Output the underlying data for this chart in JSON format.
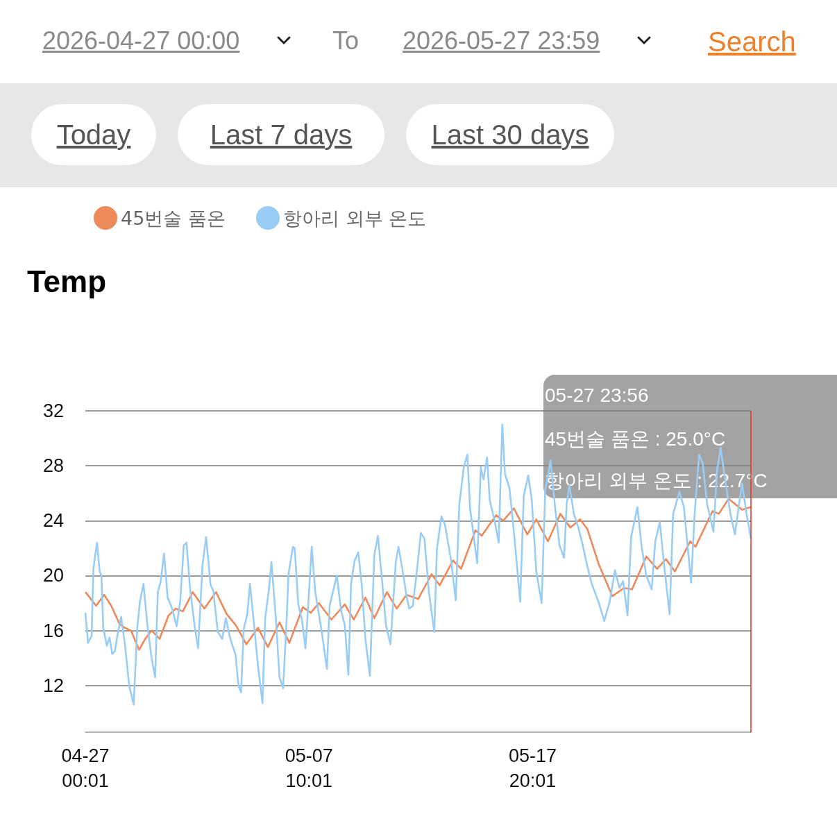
{
  "chart_data": {
    "type": "line",
    "title": "Temp",
    "legend": "top",
    "grid": "y",
    "marker": "none",
    "annotations": [
      "2026-04-27 00:00",
      "To",
      "2026-05-27 23:59",
      "Search",
      "Today",
      "Last 7 days",
      "Last 30 days",
      "05-27 23:56",
      "45번술 품온 : 25.0°C",
      "항아리 외부 온도 : 22.7°C"
    ],
    "xlim": [
      "2026-04-27T00:01",
      "2026-05-27T23:56"
    ],
    "xticks": [
      {
        "value": "2026-04-27T00:01",
        "label": "04-27\n00:01"
      },
      {
        "value": "2026-05-07T10:01",
        "label": "05-07\n10:01"
      },
      {
        "value": "2026-05-17T20:01",
        "label": "05-17\n20:01"
      }
    ],
    "ylim": [
      8.6,
      32
    ],
    "yticks": [
      12,
      16,
      20,
      24,
      28,
      32
    ],
    "ref_lines": [
      {
        "axis": "x",
        "value": "2026-05-27T23:56",
        "color": "#e8312a"
      }
    ],
    "series": [
      {
        "name": "45번술 품온",
        "color": "#ee8a5a",
        "x": [
          "2026-04-27T00:01",
          "2026-04-27T05:00",
          "2026-04-27T12:00",
          "2026-04-27T21:00",
          "2026-04-28T05:00",
          "2026-04-28T14:00",
          "2026-04-28T20:00",
          "2026-04-29T03:00",
          "2026-04-29T12:00",
          "2026-04-29T19:00",
          "2026-04-30T02:00",
          "2026-04-30T11:00",
          "2026-04-30T21:00",
          "2026-05-01T05:00",
          "2026-05-01T13:00",
          "2026-05-02T00:00",
          "2026-05-02T13:00",
          "2026-05-03T02:00",
          "2026-05-03T14:00",
          "2026-05-04T00:00",
          "2026-05-04T12:00",
          "2026-05-05T01:00",
          "2026-05-05T12:00",
          "2026-05-06T01:00",
          "2026-05-06T12:00",
          "2026-05-07T03:00",
          "2026-05-07T12:00",
          "2026-05-07T21:00",
          "2026-05-08T11:00",
          "2026-05-09T02:00",
          "2026-05-09T12:00",
          "2026-05-10T01:00",
          "2026-05-10T11:00",
          "2026-05-11T01:00",
          "2026-05-11T12:00",
          "2026-05-11T23:00",
          "2026-05-12T12:00",
          "2026-05-13T03:00",
          "2026-05-13T12:00",
          "2026-05-14T03:00",
          "2026-05-14T12:00",
          "2026-05-15T04:00",
          "2026-05-15T11:00",
          "2026-05-16T03:00",
          "2026-05-16T11:00",
          "2026-05-16T23:00",
          "2026-05-17T14:00",
          "2026-05-18T00:00",
          "2026-05-18T13:00",
          "2026-05-19T03:00",
          "2026-05-19T14:00",
          "2026-05-20T01:00",
          "2026-05-20T09:00",
          "2026-05-20T22:00",
          "2026-05-21T13:00",
          "2026-05-22T02:00",
          "2026-05-22T11:00",
          "2026-05-23T03:00",
          "2026-05-23T15:00",
          "2026-05-24T01:00",
          "2026-05-24T11:00",
          "2026-05-25T04:00",
          "2026-05-25T10:00",
          "2026-05-26T05:00",
          "2026-05-26T12:00",
          "2026-05-26T23:00",
          "2026-05-27T14:00",
          "2026-05-27T23:56"
        ],
        "values": [
          18.8,
          18.4,
          17.8,
          18.6,
          17.8,
          16.5,
          16.2,
          16.0,
          14.6,
          15.4,
          16.0,
          15.4,
          17.1,
          17.6,
          17.4,
          18.8,
          17.6,
          18.8,
          17.2,
          16.4,
          15.0,
          16.2,
          14.8,
          16.6,
          15.1,
          17.7,
          17.3,
          18.0,
          16.8,
          17.9,
          16.8,
          18.4,
          16.9,
          18.8,
          17.6,
          18.6,
          18.3,
          20.1,
          19.3,
          21.1,
          20.5,
          23.3,
          22.9,
          24.4,
          24.0,
          24.9,
          23.0,
          24.1,
          22.5,
          24.5,
          23.5,
          24.1,
          23.4,
          20.8,
          18.5,
          19.1,
          19.0,
          21.4,
          20.5,
          21.2,
          20.3,
          22.5,
          22.1,
          24.7,
          24.5,
          25.6,
          24.8,
          25.0
        ]
      },
      {
        "name": "항아리 외부 온도",
        "color": "#9acdf5",
        "x": [
          "2026-04-27T00:01",
          "2026-04-27T03:00",
          "2026-04-27T07:00",
          "2026-04-27T09:00",
          "2026-04-27T13:00",
          "2026-04-27T16:00",
          "2026-04-27T18:00",
          "2026-04-27T20:00",
          "2026-04-28T00:00",
          "2026-04-28T03:00",
          "2026-04-28T06:00",
          "2026-04-28T09:00",
          "2026-04-28T12:00",
          "2026-04-28T16:00",
          "2026-04-28T20:00",
          "2026-04-29T01:00",
          "2026-04-29T06:00",
          "2026-04-29T10:00",
          "2026-04-29T13:00",
          "2026-04-29T17:00",
          "2026-04-29T21:00",
          "2026-04-30T02:00",
          "2026-04-30T06:00",
          "2026-04-30T09:00",
          "2026-04-30T12:00",
          "2026-04-30T16:00",
          "2026-04-30T20:00",
          "2026-05-01T01:00",
          "2026-05-01T06:00",
          "2026-05-01T10:00",
          "2026-05-01T14:00",
          "2026-05-01T17:00",
          "2026-05-01T21:00",
          "2026-05-02T02:00",
          "2026-05-02T06:00",
          "2026-05-02T11:00",
          "2026-05-02T15:00",
          "2026-05-02T20:00",
          "2026-05-02T23:00",
          "2026-05-03T04:00",
          "2026-05-03T09:00",
          "2026-05-03T13:00",
          "2026-05-03T18:00",
          "2026-05-04T00:00",
          "2026-05-04T03:00",
          "2026-05-04T06:00",
          "2026-05-04T09:00",
          "2026-05-04T13:00",
          "2026-05-04T16:00",
          "2026-05-04T20:00",
          "2026-05-05T01:00",
          "2026-05-05T06:00",
          "2026-05-05T09:00",
          "2026-05-05T13:00",
          "2026-05-05T16:00",
          "2026-05-05T21:00",
          "2026-05-06T01:00",
          "2026-05-06T05:00",
          "2026-05-06T09:00",
          "2026-05-06T11:00",
          "2026-05-06T16:00",
          "2026-05-06T18:00",
          "2026-05-06T22:00",
          "2026-05-07T02:00",
          "2026-05-07T06:00",
          "2026-05-07T10:00",
          "2026-05-07T13:00",
          "2026-05-07T17:00",
          "2026-05-08T00:00",
          "2026-05-08T06:00",
          "2026-05-08T09:00",
          "2026-05-08T13:00",
          "2026-05-08T17:00",
          "2026-05-08T22:00",
          "2026-05-09T02:00",
          "2026-05-09T06:00",
          "2026-05-09T09:00",
          "2026-05-09T13:00",
          "2026-05-09T17:00",
          "2026-05-09T21:00",
          "2026-05-10T01:00",
          "2026-05-10T06:00",
          "2026-05-10T11:00",
          "2026-05-10T15:00",
          "2026-05-10T19:00",
          "2026-05-11T00:00",
          "2026-05-11T05:00",
          "2026-05-11T11:00",
          "2026-05-11T14:00",
          "2026-05-11T20:00",
          "2026-05-11T23:00",
          "2026-05-12T02:00",
          "2026-05-12T06:00",
          "2026-05-12T10:00",
          "2026-05-12T15:00",
          "2026-05-12T19:00",
          "2026-05-13T00:00",
          "2026-05-13T06:00",
          "2026-05-13T09:00",
          "2026-05-13T14:00",
          "2026-05-13T18:00",
          "2026-05-14T01:00",
          "2026-05-14T06:00",
          "2026-05-14T10:00",
          "2026-05-14T15:00",
          "2026-05-14T19:00",
          "2026-05-14T22:00",
          "2026-05-15T06:00",
          "2026-05-15T10:00",
          "2026-05-15T13:00",
          "2026-05-15T17:00",
          "2026-05-15T20:00",
          "2026-05-16T02:00",
          "2026-05-16T06:00",
          "2026-05-16T10:00",
          "2026-05-16T13:00",
          "2026-05-16T18:00",
          "2026-05-16T23:00",
          "2026-05-17T06:00",
          "2026-05-17T10:00",
          "2026-05-17T15:00",
          "2026-05-17T19:00",
          "2026-05-18T00:00",
          "2026-05-18T06:00",
          "2026-05-18T10:00",
          "2026-05-18T16:00",
          "2026-05-18T21:00",
          "2026-05-19T02:00",
          "2026-05-19T07:00",
          "2026-05-19T10:00",
          "2026-05-19T13:00",
          "2026-05-19T18:00",
          "2026-05-19T23:00",
          "2026-05-20T04:00",
          "2026-05-20T09:00",
          "2026-05-20T14:00",
          "2026-05-20T22:00",
          "2026-05-21T04:00",
          "2026-05-21T10:00",
          "2026-05-21T16:00",
          "2026-05-21T21:00",
          "2026-05-22T01:00",
          "2026-05-22T06:00",
          "2026-05-22T10:00",
          "2026-05-22T17:00",
          "2026-05-22T22:00",
          "2026-05-23T03:00",
          "2026-05-23T09:00",
          "2026-05-23T13:00",
          "2026-05-23T18:00",
          "2026-05-23T23:00",
          "2026-05-24T05:00",
          "2026-05-24T09:00",
          "2026-05-24T16:00",
          "2026-05-24T21:00",
          "2026-05-25T05:00",
          "2026-05-25T09:00",
          "2026-05-25T14:00",
          "2026-05-25T18:00",
          "2026-05-25T23:00",
          "2026-05-26T06:00",
          "2026-05-26T10:00",
          "2026-05-26T14:00",
          "2026-05-26T20:00",
          "2026-05-27T01:00",
          "2026-05-27T06:00",
          "2026-05-27T10:00",
          "2026-05-27T14:00",
          "2026-05-27T19:00",
          "2026-05-27T23:56"
        ],
        "values": [
          17.3,
          15.1,
          15.6,
          20.5,
          22.4,
          20.3,
          20.0,
          16.2,
          14.9,
          15.5,
          14.3,
          14.5,
          15.7,
          17.0,
          15.1,
          12.0,
          10.6,
          16.2,
          18.1,
          19.4,
          16.6,
          14.0,
          12.6,
          18.8,
          19.5,
          21.6,
          18.4,
          17.6,
          16.3,
          18.1,
          22.2,
          22.4,
          19.1,
          16.4,
          14.7,
          20.8,
          22.8,
          19.3,
          18.9,
          15.9,
          15.4,
          16.9,
          15.4,
          14.2,
          12.0,
          11.5,
          16.1,
          17.2,
          19.4,
          16.8,
          13.4,
          10.7,
          16.9,
          18.9,
          21.0,
          16.8,
          12.6,
          11.8,
          16.8,
          20.1,
          22.1,
          22.0,
          17.9,
          16.8,
          14.7,
          18.8,
          22.1,
          18.8,
          16.0,
          13.2,
          17.8,
          18.9,
          20.0,
          17.4,
          16.4,
          12.8,
          19.4,
          21.1,
          21.7,
          19.3,
          15.4,
          12.7,
          21.5,
          22.9,
          20.1,
          16.4,
          15.0,
          21.0,
          22.1,
          19.8,
          18.5,
          17.6,
          17.8,
          20.0,
          23.1,
          22.7,
          18.8,
          15.9,
          22.0,
          24.3,
          23.7,
          21.0,
          18.2,
          25.2,
          27.9,
          28.8,
          24.9,
          20.9,
          27.9,
          27.0,
          28.6,
          25.5,
          23.8,
          22.4,
          31.0,
          27.4,
          26.4,
          23.2,
          18.1,
          25.8,
          27.3,
          25.5,
          20.3,
          18.0,
          26.2,
          28.4,
          25.0,
          22.2,
          21.3,
          25.2,
          26.6,
          24.5,
          23.5,
          22.2,
          20.7,
          19.4,
          18.0,
          16.7,
          18.1,
          20.4,
          19.1,
          19.6,
          17.1,
          22.8,
          25.0,
          22.0,
          20.0,
          19.0,
          22.5,
          23.9,
          20.7,
          17.2,
          24.5,
          26.1,
          25.0,
          19.5,
          24.5,
          28.8,
          28.2,
          25.2,
          23.2,
          27.6,
          29.3,
          26.6,
          24.5,
          23.0,
          24.9,
          26.7,
          24.5,
          22.7
        ]
      }
    ]
  }
}
